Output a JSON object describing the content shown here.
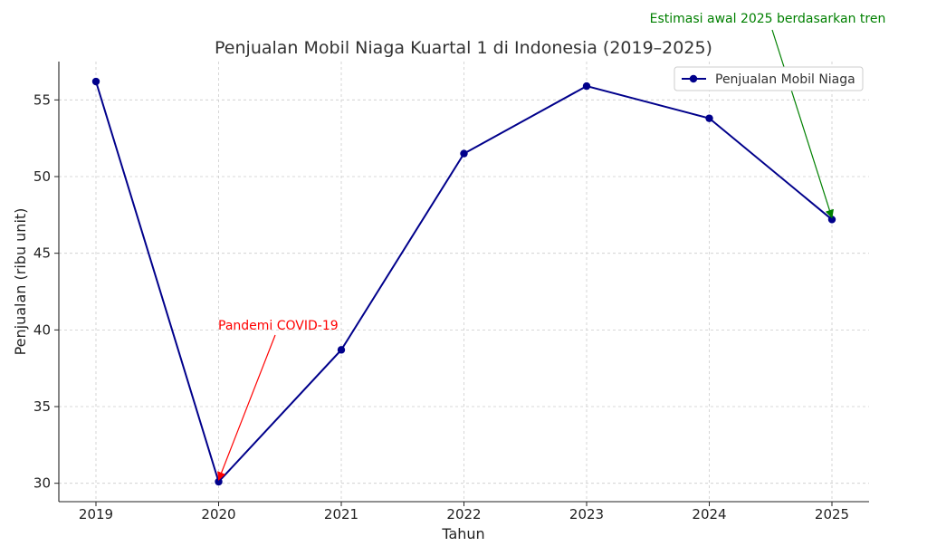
{
  "chart_data": {
    "type": "line",
    "title": "Penjualan Mobil Niaga Kuartal 1 di Indonesia (2019–2025)",
    "xlabel": "Tahun",
    "ylabel": "Penjualan (ribu unit)",
    "categories": [
      "2019",
      "2020",
      "2021",
      "2022",
      "2023",
      "2024",
      "2025"
    ],
    "series": [
      {
        "name": "Penjualan Mobil Niaga",
        "values": [
          56.2,
          30.1,
          38.7,
          51.5,
          55.9,
          53.8,
          47.2
        ],
        "color": "#00008b"
      }
    ],
    "ylim": [
      28.8,
      57.5
    ],
    "yticks": [
      30,
      35,
      40,
      45,
      50,
      55
    ],
    "grid": true,
    "legend_position": "top-right",
    "annotations": [
      {
        "text": "Pandemi COVID-19",
        "target_category": "2020",
        "target_value": 30.1,
        "color": "#ff0000"
      },
      {
        "text": "Estimasi awal 2025 berdasarkan tren",
        "target_category": "2025",
        "target_value": 47.2,
        "color": "#008000"
      }
    ]
  }
}
